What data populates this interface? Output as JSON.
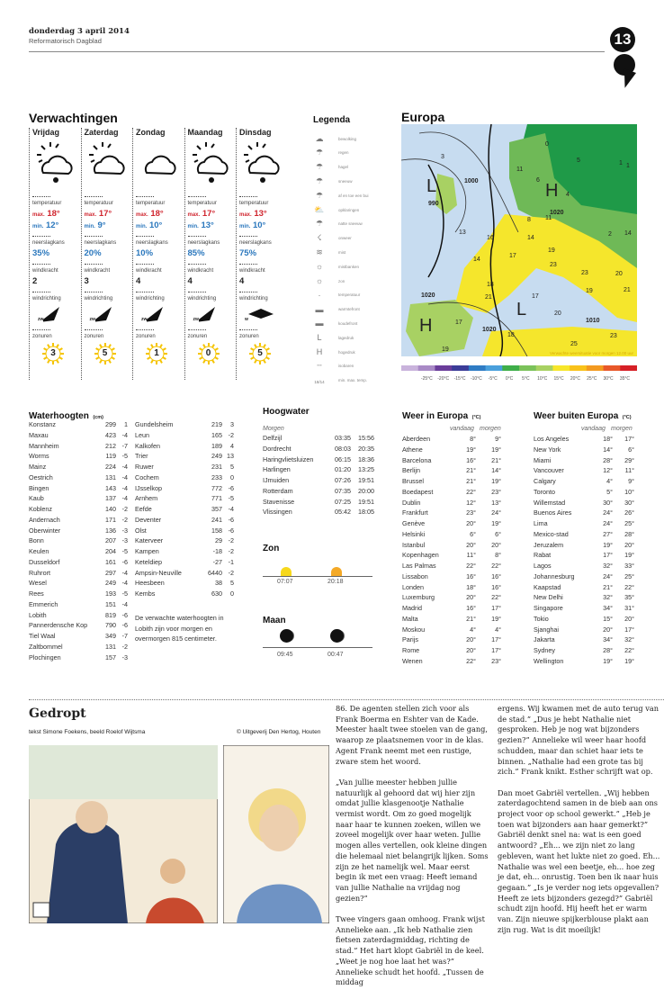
{
  "header": {
    "date": "donderdag 3 april 2014",
    "paper": "Reformatorisch Dagblad",
    "page_number": "13"
  },
  "forecast": {
    "title": "Verwachtingen",
    "labels": {
      "temp": "temperatuur",
      "max": "max.",
      "min": "min.",
      "rain": "neerslagkans",
      "windforce": "windkracht",
      "winddir": "windrichting",
      "sun": "zonuren"
    },
    "days": [
      {
        "day": "Vrijdag",
        "icon": "sun-cloud-rain-icon",
        "max": "18°",
        "min": "12°",
        "rain": "35%",
        "wind": "2",
        "dir": "zw",
        "sun": "3"
      },
      {
        "day": "Zaterdag",
        "icon": "sun-cloud-icon",
        "max": "17°",
        "min": "9°",
        "rain": "20%",
        "wind": "3",
        "dir": "zw",
        "sun": "5"
      },
      {
        "day": "Zondag",
        "icon": "cloud-icon",
        "max": "18°",
        "min": "10°",
        "rain": "10%",
        "wind": "4",
        "dir": "zw",
        "sun": "1"
      },
      {
        "day": "Maandag",
        "icon": "sun-cloud-rain-icon",
        "max": "17°",
        "min": "13°",
        "rain": "85%",
        "wind": "4",
        "dir": "zw",
        "sun": "0"
      },
      {
        "day": "Dinsdag",
        "icon": "sun-cloud-rain-icon",
        "max": "13°",
        "min": "10°",
        "rain": "75%",
        "wind": "4",
        "dir": "w",
        "sun": "5"
      }
    ],
    "colors": {
      "max": "#d0262f",
      "min": "#2a77bd",
      "sun": "#f5c400"
    }
  },
  "legend": {
    "title": "Legenda",
    "items": [
      {
        "icon": "cloud-icon",
        "label": "bewolking"
      },
      {
        "icon": "rain-icon",
        "label": "regen"
      },
      {
        "icon": "hail-icon",
        "label": "hagel"
      },
      {
        "icon": "snow-icon",
        "label": "sneeuw"
      },
      {
        "icon": "shower-icon",
        "label": "af en toe een bui"
      },
      {
        "icon": "sun-cloud-icon",
        "label": "opklaringen"
      },
      {
        "icon": "sleet-icon",
        "label": "natte sneeuw"
      },
      {
        "icon": "thunder-icon",
        "label": "onweer"
      },
      {
        "icon": "fog-icon",
        "label": "mist"
      },
      {
        "icon": "fog-patches-icon",
        "label": "mistbanken"
      },
      {
        "icon": "sun-icon",
        "label": "zon"
      },
      {
        "icon": "temperature-icon",
        "label": "temperatuur"
      },
      {
        "icon": "warm-front-icon",
        "label": "warmtefront"
      },
      {
        "icon": "cold-front-icon",
        "label": "koudefront"
      },
      {
        "icon": "low-pressure-icon",
        "label": "lagedruk"
      },
      {
        "icon": "high-pressure-icon",
        "label": "hogedruk"
      },
      {
        "icon": "isobar-icon",
        "label": "isobaren"
      },
      {
        "icon": "minmax-icon",
        "label": "min. max. temp.",
        "sample": "18/14"
      }
    ]
  },
  "map": {
    "title": "Europa",
    "caption": "Verwachte weersituatie voor morgen 12.00 uur",
    "pressure": [
      "L",
      "H",
      "L",
      "H"
    ],
    "isobars": [
      "990",
      "1000",
      "1020",
      "1020",
      "1020",
      "1010"
    ],
    "temps": [
      "3",
      "0",
      "5",
      "1",
      "11",
      "6",
      "4",
      "11",
      "8",
      "13",
      "16",
      "14",
      "19",
      "23",
      "2",
      "14",
      "17",
      "14",
      "23",
      "20",
      "18",
      "21",
      "19",
      "21",
      "17",
      "20",
      "17",
      "18",
      "19",
      "23",
      "25",
      "1"
    ],
    "scale_labels": [
      "-25°C",
      "-20°C",
      "-15°C",
      "-10°C",
      "-5°C",
      "0°C",
      "5°C",
      "10°C",
      "15°C",
      "20°C",
      "25°C",
      "30°C",
      "35°C"
    ],
    "scale_colors": [
      "#c9b3dc",
      "#a98ac6",
      "#6a3d9a",
      "#3b3c98",
      "#2f7cc4",
      "#4aa0dc",
      "#3fae49",
      "#7bc25a",
      "#a8d163",
      "#f7e62b",
      "#f9c21a",
      "#f39a20",
      "#e8582a",
      "#d62027"
    ]
  },
  "water": {
    "title": "Waterhoogten",
    "unit": "(cm)",
    "col1": [
      [
        "Konstanz",
        "299",
        "1"
      ],
      [
        "Maxau",
        "423",
        "-4"
      ],
      [
        "Mannheim",
        "212",
        "-7"
      ],
      [
        "Worms",
        "119",
        "-5"
      ],
      [
        "Mainz",
        "224",
        "-4"
      ],
      [
        "Oestrich",
        "131",
        "-4"
      ],
      [
        "Bingen",
        "143",
        "-4"
      ],
      [
        "Kaub",
        "137",
        "-4"
      ],
      [
        "Koblenz",
        "140",
        "-2"
      ],
      [
        "Andernach",
        "171",
        "-2"
      ],
      [
        "Oberwinter",
        "136",
        "-3"
      ],
      [
        "Bonn",
        "207",
        "-3"
      ],
      [
        "Keulen",
        "204",
        "-5"
      ],
      [
        "Dusseldorf",
        "161",
        "-6"
      ],
      [
        "Ruhrort",
        "297",
        "-4"
      ],
      [
        "Wesel",
        "249",
        "-4"
      ],
      [
        "Rees",
        "193",
        "-5"
      ],
      [
        "Emmerich",
        "151",
        "-4"
      ],
      [
        "Lobith",
        "819",
        "-6"
      ],
      [
        "Pannerdensche Kop",
        "790",
        "-6"
      ],
      [
        "Tiel Waal",
        "349",
        "-7"
      ],
      [
        "Zaltbommel",
        "131",
        "-2"
      ],
      [
        "Plochingen",
        "157",
        "-3"
      ]
    ],
    "col2": [
      [
        "Gundelsheim",
        "219",
        "3"
      ],
      [
        "Leun",
        "165",
        "-2"
      ],
      [
        "Kalkofen",
        "189",
        "4"
      ],
      [
        "Trier",
        "249",
        "13"
      ],
      [
        "Ruwer",
        "231",
        "5"
      ],
      [
        "Cochem",
        "233",
        "0"
      ],
      [
        "IJsselkop",
        "772",
        "-6"
      ],
      [
        "Arnhem",
        "771",
        "-5"
      ],
      [
        "Eefde",
        "357",
        "-4"
      ],
      [
        "Deventer",
        "241",
        "-6"
      ],
      [
        "Olst",
        "158",
        "-6"
      ],
      [
        "Katerveer",
        "29",
        "-2"
      ],
      [
        "Kampen",
        "-18",
        "-2"
      ],
      [
        "Keteldiep",
        "-27",
        "-1"
      ],
      [
        "Ampsin-Neuville",
        "6440",
        "-2"
      ],
      [
        "Heesbeen",
        "38",
        "5"
      ],
      [
        "Kembs",
        "630",
        "0"
      ]
    ],
    "note": "De verwachte waterhoogten in Lobith zijn voor morgen en overmorgen 815 centimeter."
  },
  "tide": {
    "title": "Hoogwater",
    "subtitle": "Morgen",
    "rows": [
      [
        "Delfzijl",
        "03:35",
        "15:56"
      ],
      [
        "Dordrecht",
        "08:03",
        "20:35"
      ],
      [
        "Haringvlietsluizen",
        "06:15",
        "18:36"
      ],
      [
        "Harlingen",
        "01:20",
        "13:25"
      ],
      [
        "IJmuiden",
        "07:26",
        "19:51"
      ],
      [
        "Rotterdam",
        "07:35",
        "20:00"
      ],
      [
        "Stavenisse",
        "07:25",
        "19:51"
      ],
      [
        "Vlissingen",
        "05:42",
        "18:05"
      ]
    ]
  },
  "sun": {
    "title": "Zon",
    "rise": "07:07",
    "set": "20:18"
  },
  "moon": {
    "title": "Maan",
    "rise": "09:45",
    "set": "00:47"
  },
  "europe": {
    "title": "Weer in Europa",
    "unit": "(°C)",
    "col_today": "vandaag",
    "col_tomorrow": "morgen",
    "rows": [
      [
        "Aberdeen",
        "8°",
        "9°"
      ],
      [
        "Athene",
        "19°",
        "19°"
      ],
      [
        "Barcelona",
        "16°",
        "21°"
      ],
      [
        "Berlijn",
        "21°",
        "14°"
      ],
      [
        "Brussel",
        "21°",
        "19°"
      ],
      [
        "Boedapest",
        "22°",
        "23°"
      ],
      [
        "Dublin",
        "12°",
        "13°"
      ],
      [
        "Frankfurt",
        "23°",
        "24°"
      ],
      [
        "Genève",
        "20°",
        "19°"
      ],
      [
        "Helsinki",
        "6°",
        "6°"
      ],
      [
        "Istanbul",
        "20°",
        "20°"
      ],
      [
        "Kopenhagen",
        "11°",
        "8°"
      ],
      [
        "Las Palmas",
        "22°",
        "22°"
      ],
      [
        "Lissabon",
        "16°",
        "16°"
      ],
      [
        "Londen",
        "18°",
        "16°"
      ],
      [
        "Luxemburg",
        "20°",
        "22°"
      ],
      [
        "Madrid",
        "16°",
        "17°"
      ],
      [
        "Malta",
        "21°",
        "19°"
      ],
      [
        "Moskou",
        "4°",
        "4°"
      ],
      [
        "Parijs",
        "20°",
        "17°"
      ],
      [
        "Rome",
        "20°",
        "17°"
      ],
      [
        "Wenen",
        "22°",
        "23°"
      ]
    ]
  },
  "world": {
    "title": "Weer buiten Europa",
    "unit": "(°C)",
    "col_today": "vandaag",
    "col_tomorrow": "morgen",
    "rows": [
      [
        "Los Angeles",
        "18°",
        "17°"
      ],
      [
        "New York",
        "14°",
        "6°"
      ],
      [
        "Miami",
        "28°",
        "29°"
      ],
      [
        "Vancouver",
        "12°",
        "11°"
      ],
      [
        "Calgary",
        "4°",
        "9°"
      ],
      [
        "Toronto",
        "5°",
        "10°"
      ],
      [
        "Willemstad",
        "30°",
        "30°"
      ],
      [
        "Buenos Aires",
        "24°",
        "26°"
      ],
      [
        "Lima",
        "24°",
        "25°"
      ],
      [
        "Mexico-stad",
        "27°",
        "28°"
      ],
      [
        "Jeruzalem",
        "19°",
        "20°"
      ],
      [
        "Rabat",
        "17°",
        "19°"
      ],
      [
        "Lagos",
        "32°",
        "33°"
      ],
      [
        "Johannesburg",
        "24°",
        "25°"
      ],
      [
        "Kaapstad",
        "21°",
        "22°"
      ],
      [
        "New Delhi",
        "32°",
        "35°"
      ],
      [
        "Singapore",
        "34°",
        "31°"
      ],
      [
        "Tokio",
        "15°",
        "20°"
      ],
      [
        "Sjanghai",
        "20°",
        "17°"
      ],
      [
        "Jakarta",
        "34°",
        "32°"
      ],
      [
        "Sydney",
        "28°",
        "22°"
      ],
      [
        "Wellington",
        "19°",
        "19°"
      ]
    ]
  },
  "comic": {
    "title": "Gedropt",
    "credits": "tekst Simone Foekens, beeld Roelof Wijtsma",
    "copyright": "© Uitgeverij Den Hertog, Houten",
    "col1": [
      "86. De agenten stellen zich voor als Frank Boerma en Eshter van de Kade. Meester haalt twee stoelen van de gang, waarop ze plaatsnemen voor in de klas. Agent Frank neemt met een rustige, zware stem het woord.",
      "„Van jullie meester hebben jullie natuurlijk al gehoord dat wij hier zijn omdat jullie klasgenootje Nathalie vermist wordt. Om zo goed mogelijk naar haar te kunnen zoeken, willen we zoveel mogelijk over haar weten. Jullie mogen alles vertellen, ook kleine dingen die helemaal niet belangrijk lijken. Soms zijn ze het namelijk wel. Maar eerst begin ik met een vraag: Heeft iemand van jullie Nathalie na vrijdag nog gezien?”",
      "Twee vingers gaan omhoog. Frank wijst Annelieke aan. „Ik heb Nathalie zien fietsen zaterdagmiddag, richting de stad.” Het hart klopt Gabriël in de keel. „Weet je nog hoe laat het was?” Annelieke schudt het hoofd. „Tussen de middag"
    ],
    "col2": [
      "ergens. Wij kwamen met de auto terug van de stad.” „Dus je hebt Nathalie niet gesproken. Heb je nog wat bijzonders gezien?” Annelieke wil weer haar hoofd schudden, maar dan schiet haar iets te binnen. „Nathalie had een grote tas bij zich.” Frank knikt. Esther schrijft wat op.",
      "Dan moet Gabriël vertellen. „Wij hebben zaterdagochtend samen in de bieb aan ons project voor op school gewerkt.” „Heb je toen wat bijzonders aan haar gemerkt?” Gabriël denkt snel na: wat is een goed antwoord? „Eh... we zijn niet zo lang gebleven, want het lukte niet zo goed. Eh... Nathalie was wel een beetje, eh... hoe zeg je dat, eh... onrustig. Toen ben ik naar huis gegaan.” „Is je verder nog iets opgevallen? Heeft ze iets bijzonders gezegd?” Gabriël schudt zijn hoofd. Hij heeft het er warm van. Zijn nieuwe spijkerblouse plakt aan zijn rug. Wat is dit moeilijk!"
    ]
  }
}
